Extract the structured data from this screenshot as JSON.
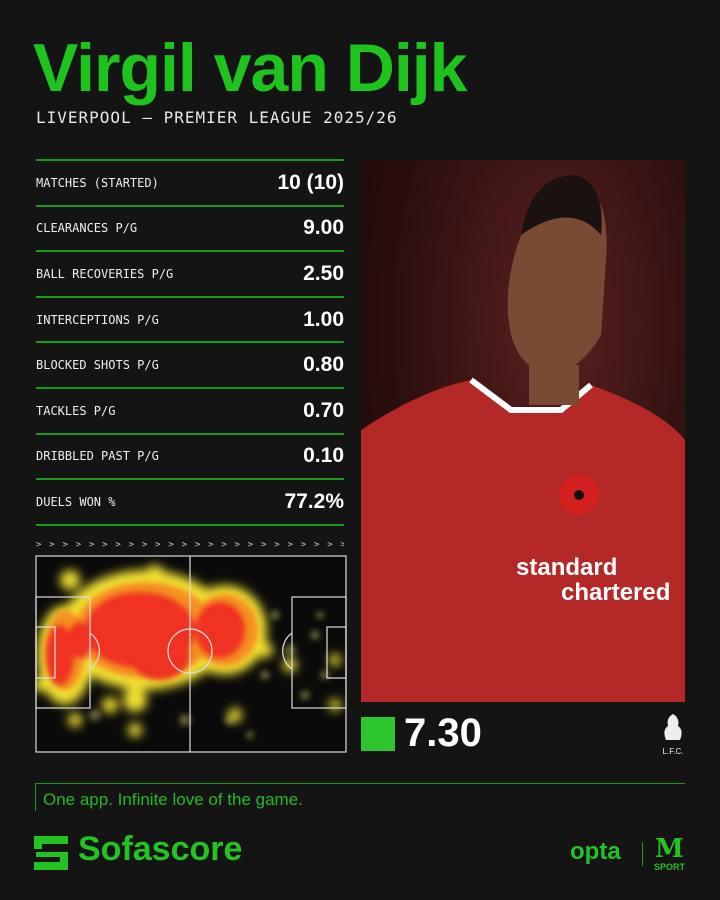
{
  "header": {
    "player_name": "Virgil van Dijk",
    "subtitle": "LIVERPOOL — PREMIER LEAGUE 2025/26"
  },
  "stats": [
    {
      "label": "MATCHES (STARTED)",
      "value": "10 (10)"
    },
    {
      "label": "CLEARANCES P/G",
      "value": "9.00"
    },
    {
      "label": "BALL RECOVERIES P/G",
      "value": "2.50"
    },
    {
      "label": "INTERCEPTIONS P/G",
      "value": "1.00"
    },
    {
      "label": "BLOCKED SHOTS P/G",
      "value": "0.80"
    },
    {
      "label": "TACKLES P/G",
      "value": "0.70"
    },
    {
      "label": "DRIBBLED PAST P/G",
      "value": "0.10"
    },
    {
      "label": "DUELS WON %",
      "value": "77.2%"
    }
  ],
  "heatmap": {
    "direction_marker": "> > > > > > > > > > > > > > > > > > > > > > > > > > > > > > > > > > > > > > > > > > > > >"
  },
  "rating": {
    "value": "7.30",
    "color": "#2ec62e"
  },
  "photo": {
    "sponsor": "standard chartered",
    "crest": "L.F.C."
  },
  "footer": {
    "tagline": "One app. Infinite love of the game.",
    "brand": "Sofascore",
    "partner1": "opta",
    "partner2_mark": "M",
    "partner2": "SPORT"
  },
  "colors": {
    "accent": "#1ec31e",
    "background": "#141414"
  }
}
